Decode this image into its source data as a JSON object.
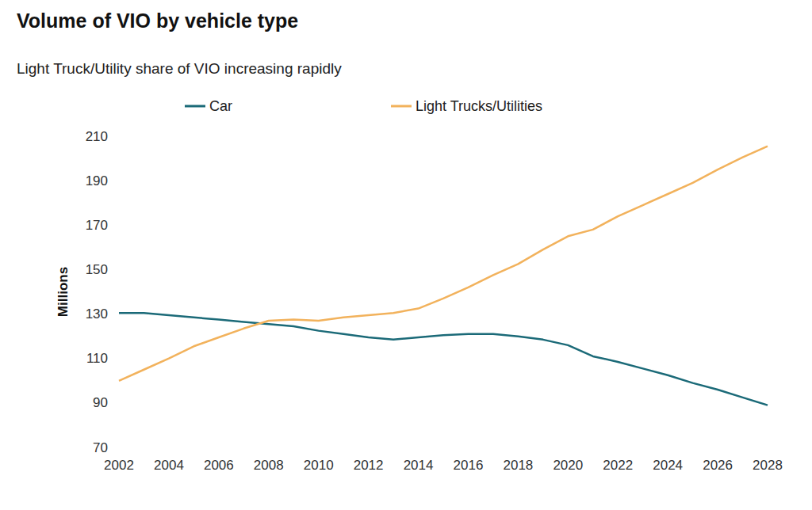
{
  "chart_data": {
    "type": "line",
    "title": "Volume of VIO by vehicle type",
    "subtitle": "Light Truck/Utility share of VIO increasing rapidly",
    "y_label": "Millions",
    "x": [
      2002,
      2003,
      2004,
      2005,
      2006,
      2007,
      2008,
      2009,
      2010,
      2011,
      2012,
      2013,
      2014,
      2015,
      2016,
      2017,
      2018,
      2019,
      2020,
      2021,
      2022,
      2023,
      2024,
      2025,
      2026,
      2027,
      2028
    ],
    "series": [
      {
        "name": "Car",
        "color": "#1b6a78",
        "values": [
          130.5,
          130.5,
          129.5,
          128.5,
          127.5,
          126.5,
          125.5,
          124.5,
          122.5,
          121,
          119.5,
          118.5,
          119.5,
          120.5,
          121,
          121,
          120,
          118.5,
          116,
          111,
          108.5,
          105.5,
          102.5,
          99,
          96,
          92.5,
          89
        ]
      },
      {
        "name": "Light Trucks/Utilities",
        "color": "#f2b25c",
        "values": [
          100,
          105,
          110,
          115.5,
          119.5,
          123.5,
          127,
          127.5,
          127,
          128.5,
          129.5,
          130.5,
          132.5,
          137,
          142,
          147.5,
          152.5,
          159,
          165,
          168,
          174,
          179,
          184,
          189,
          195,
          200.5,
          205.5
        ]
      }
    ],
    "xlim": [
      2002,
      2028
    ],
    "xticks": [
      2002,
      2004,
      2006,
      2008,
      2010,
      2012,
      2014,
      2016,
      2018,
      2020,
      2022,
      2024,
      2026,
      2028
    ],
    "ylim": [
      70,
      210
    ],
    "yticks": [
      70,
      90,
      110,
      130,
      150,
      170,
      190,
      210
    ],
    "grid": false,
    "legend": "top"
  }
}
